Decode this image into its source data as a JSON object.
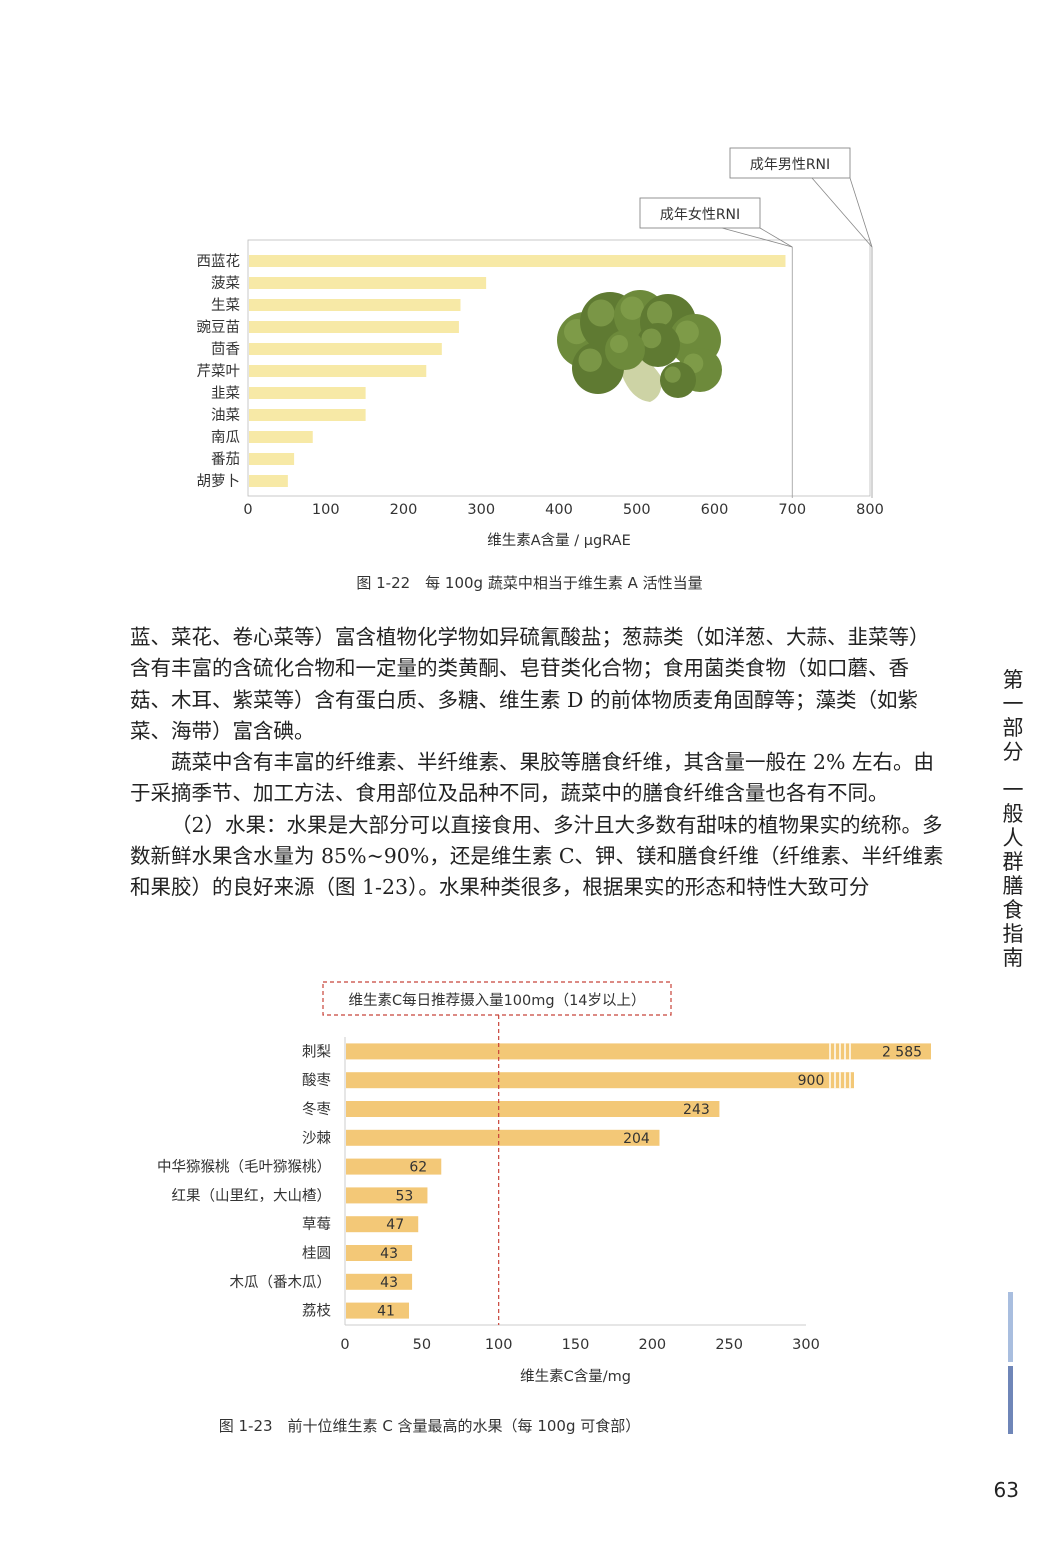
{
  "chart_data": [
    {
      "type": "bar",
      "orientation": "horizontal",
      "categories": [
        "西蓝花",
        "菠菜",
        "生菜",
        "豌豆苗",
        "茴香",
        "芹菜叶",
        "韭菜",
        "油菜",
        "南瓜",
        "番茄",
        "胡萝卜"
      ],
      "values": [
        690,
        305,
        272,
        270,
        248,
        228,
        150,
        150,
        82,
        58,
        50
      ],
      "xlabel": "维生素A含量 / μgRAE",
      "xlim": [
        0,
        800
      ],
      "xticks": [
        0,
        100,
        200,
        300,
        400,
        500,
        600,
        700,
        800
      ],
      "grid": false,
      "bar_color": "#f7e9a6",
      "reference_lines": [
        {
          "label": "成年女性RNI",
          "value": 700
        },
        {
          "label": "成年男性RNI",
          "value": 800
        }
      ],
      "caption": "图 1-22　每 100g 蔬菜中相当于维生素 A 活性当量"
    },
    {
      "type": "bar",
      "orientation": "horizontal",
      "categories": [
        "刺梨",
        "酸枣",
        "冬枣",
        "沙棘",
        "中华猕猴桃（毛叶猕猴桃）",
        "红果（山里红，大山楂）",
        "草莓",
        "桂圆",
        "木瓜（番木瓜）",
        "荔枝"
      ],
      "values": [
        2585,
        900,
        243,
        204,
        62,
        53,
        47,
        43,
        43,
        41
      ],
      "value_labels": [
        "2 585",
        "900",
        "243",
        "204",
        "62",
        "53",
        "47",
        "43",
        "43",
        "41"
      ],
      "axis_break": true,
      "xlabel": "维生素C含量/mg",
      "xlim": [
        0,
        300
      ],
      "xticks": [
        0,
        50,
        100,
        150,
        200,
        250,
        300
      ],
      "grid": false,
      "bar_color": "#f3c877",
      "reference_line": {
        "label": "维生素C每日推荐摄入量100mg（14岁以上）",
        "value": 100,
        "color": "#c8443a"
      },
      "caption": "图 1-23　前十位维生素 C 含量最高的水果（每 100g 可食部）"
    }
  ],
  "body": {
    "p1": "蓝、菜花、卷心菜等）富含植物化学物如异硫氰酸盐；葱蒜类（如洋葱、大蒜、韭菜等）含有丰富的含硫化合物和一定量的类黄酮、皂苷类化合物；食用菌类食物（如口蘑、香菇、木耳、紫菜等）含有蛋白质、多糖、维生素 D 的前体物质麦角固醇等；藻类（如紫菜、海带）富含碘。",
    "p2": "蔬菜中含有丰富的纤维素、半纤维素、果胶等膳食纤维，其含量一般在 2% 左右。由于采摘季节、加工方法、食用部位及品种不同，蔬菜中的膳食纤维含量也各有不同。",
    "p3": "（2）水果：水果是大部分可以直接食用、多汁且大多数有甜味的植物果实的统称。多数新鲜水果含水量为 85%~90%，还是维生素 C、钾、镁和膳食纤维（纤维素、半纤维素和果胶）的良好来源（图 1-23）。水果种类很多，根据果实的形态和特性大致可分"
  },
  "sidebar": {
    "part": "第一部分",
    "title": "一般人群膳食指南"
  },
  "page_number": "63",
  "colors": {
    "tab_light": "#a9bedf",
    "tab_dark": "#6f86b8"
  }
}
